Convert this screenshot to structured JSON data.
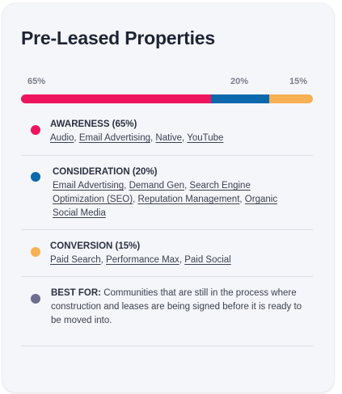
{
  "title": "Pre-Leased Properties",
  "distribution": {
    "labels": {
      "awareness": "65%",
      "consideration": "20%",
      "conversion": "15%"
    },
    "values": {
      "awareness": 65,
      "consideration": 20,
      "conversion": 15
    },
    "colors": {
      "awareness": "#f0145f",
      "consideration": "#0b68ad",
      "conversion": "#f7b052",
      "best_for": "#6b6e8e"
    }
  },
  "sections": {
    "awareness": {
      "heading": "AWARENESS (65%)",
      "links": [
        "Audio",
        "Email Advertising",
        "Native",
        "YouTube"
      ]
    },
    "consideration": {
      "heading": "CONSIDERATION (20%)",
      "links": [
        "Email Advertising",
        "Demand Gen",
        "Search Engine Optimization (SEO)",
        "Reputation Management",
        "Organic Social Media"
      ]
    },
    "conversion": {
      "heading": "CONVERSION (15%)",
      "links": [
        "Paid Search",
        "Performance Max",
        "Paid Social"
      ]
    },
    "best_for": {
      "label": "BEST FOR:",
      "text": "Communities that are still in the process where construction and leases are being signed before it is ready to be moved into."
    }
  }
}
